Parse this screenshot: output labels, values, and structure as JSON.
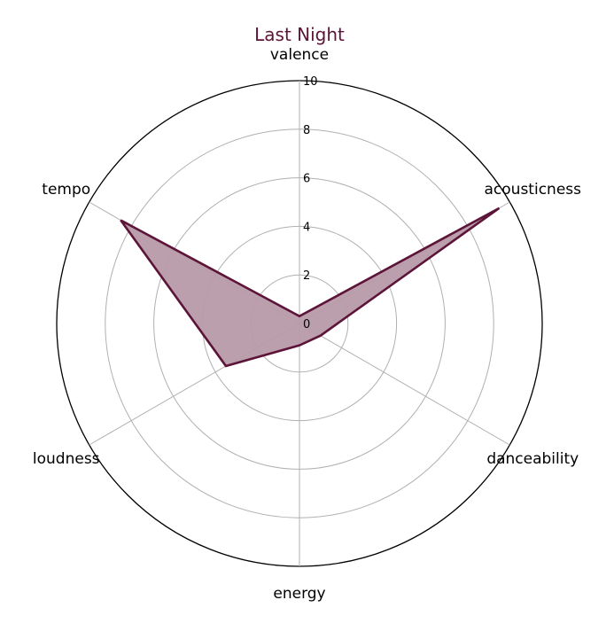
{
  "chart_data": {
    "type": "radar",
    "title": "Last Night",
    "axes": [
      "valence",
      "acousticness",
      "danceability",
      "energy",
      "loudness",
      "tempo"
    ],
    "series": [
      {
        "values": [
          0.3,
          9.5,
          1.0,
          0.9,
          3.5,
          8.5
        ]
      }
    ],
    "rlim": [
      0,
      10
    ],
    "r_ticks": [
      "0",
      "2",
      "4",
      "6",
      "8",
      "10"
    ],
    "grid": true,
    "colors": {
      "line": "#5c1438",
      "fill": "#b89aa8",
      "title": "#5c1438",
      "grid": "#b0b0b0",
      "frame": "#000000"
    }
  }
}
